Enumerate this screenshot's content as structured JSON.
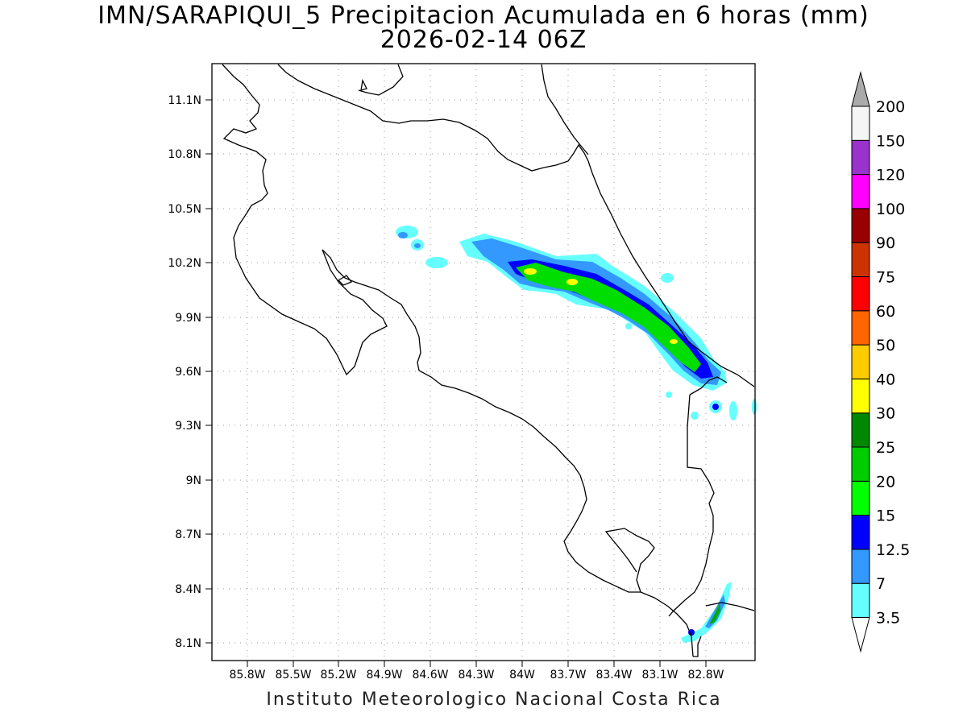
{
  "title_line1": "IMN/SARAPIQUI_5 Precipitacion Acumulada en 6 horas (mm)",
  "title_line2": "2026-02-14 06Z",
  "footer": "Instituto Meteorologico Nacional Costa Rica",
  "map": {
    "lon_labels": [
      "85.8W",
      "85.5W",
      "85.2W",
      "84.9W",
      "84.6W",
      "84.3W",
      "84W",
      "83.7W",
      "83.4W",
      "83.1W",
      "82.8W"
    ],
    "lat_labels": [
      "11.1N",
      "10.8N",
      "10.5N",
      "10.2N",
      "9.9N",
      "9.6N",
      "9.3N",
      "9N",
      "8.7N",
      "8.4N",
      "8.1N"
    ],
    "grid": "dotted"
  },
  "colorbar": {
    "labels": [
      "3.5",
      "7",
      "12.5",
      "15",
      "20",
      "25",
      "30",
      "40",
      "50",
      "60",
      "75",
      "90",
      "100",
      "120",
      "150",
      "200"
    ],
    "colors": [
      "#ffffff",
      "#66ffff",
      "#3399ff",
      "#0000ff",
      "#00ff00",
      "#00cc00",
      "#008800",
      "#ffff00",
      "#ffcc00",
      "#ff6600",
      "#ff0000",
      "#cc3300",
      "#990000",
      "#ff00ff",
      "#9933cc",
      "#f5f5f5"
    ],
    "arrow_colors": {
      "low": "#ffffff",
      "high": "#aaaaaa"
    }
  }
}
